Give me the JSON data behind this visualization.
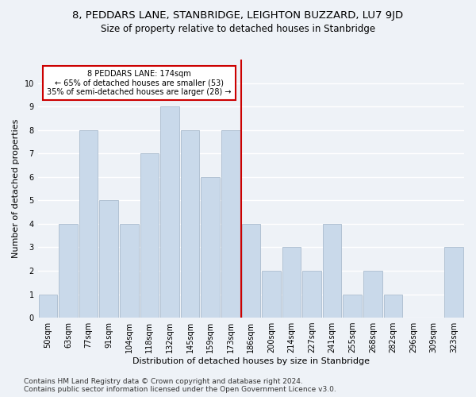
{
  "title1": "8, PEDDARS LANE, STANBRIDGE, LEIGHTON BUZZARD, LU7 9JD",
  "title2": "Size of property relative to detached houses in Stanbridge",
  "xlabel": "Distribution of detached houses by size in Stanbridge",
  "ylabel": "Number of detached properties",
  "categories": [
    "50sqm",
    "63sqm",
    "77sqm",
    "91sqm",
    "104sqm",
    "118sqm",
    "132sqm",
    "145sqm",
    "159sqm",
    "173sqm",
    "186sqm",
    "200sqm",
    "214sqm",
    "227sqm",
    "241sqm",
    "255sqm",
    "268sqm",
    "282sqm",
    "296sqm",
    "309sqm",
    "323sqm"
  ],
  "values": [
    1,
    4,
    8,
    5,
    4,
    7,
    9,
    8,
    6,
    8,
    4,
    2,
    3,
    2,
    4,
    1,
    2,
    1,
    0,
    0,
    3
  ],
  "bar_color": "#c9d9ea",
  "bar_edge_color": "#aabcce",
  "vline_x": 9.5,
  "vline_color": "#cc0000",
  "annotation_text": "8 PEDDARS LANE: 174sqm\n← 65% of detached houses are smaller (53)\n35% of semi-detached houses are larger (28) →",
  "annotation_box_color": "#ffffff",
  "annotation_box_edge_color": "#cc0000",
  "ylim": [
    0,
    11
  ],
  "yticks": [
    0,
    1,
    2,
    3,
    4,
    5,
    6,
    7,
    8,
    9,
    10,
    11
  ],
  "footer1": "Contains HM Land Registry data © Crown copyright and database right 2024.",
  "footer2": "Contains public sector information licensed under the Open Government Licence v3.0.",
  "background_color": "#eef2f7",
  "plot_background_color": "#eef2f7",
  "grid_color": "#ffffff",
  "title1_fontsize": 9.5,
  "title2_fontsize": 8.5,
  "xlabel_fontsize": 8,
  "ylabel_fontsize": 8,
  "tick_fontsize": 7,
  "annotation_fontsize": 7,
  "footer_fontsize": 6.5
}
